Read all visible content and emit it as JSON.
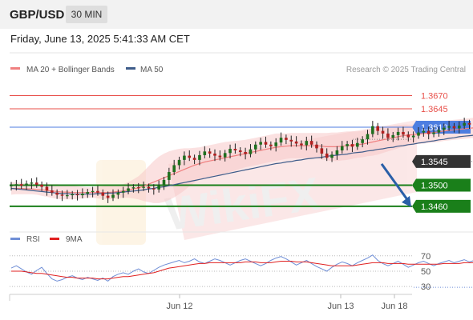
{
  "header": {
    "symbol": "GBP/USD",
    "timeframe": "30 MIN",
    "datetime": "Friday, June 13, 2025 5:41:33 AM CET"
  },
  "legend": {
    "ma20_label": "MA 20 + Bollinger Bands",
    "ma50_label": "MA 50",
    "copyright": "Research © 2025 Trading Central",
    "rsi_label": "RSI",
    "rsi_ma_label": "9MA"
  },
  "colors": {
    "ma20": "#f08080",
    "ma50": "#3e5c8a",
    "resistance": "#e8504a",
    "pivot": "#4d7ee0",
    "support": "#1a7f1a",
    "price_tag": "#333333",
    "arrow": "#2a5fa8",
    "rsi": "#6f8ed6",
    "rsi_ma": "#e02020",
    "candle_up": "#1f6f1f",
    "candle_down": "#b02020"
  },
  "chart_data": {
    "type": "candlestick",
    "y_unit": "GBP/USD price",
    "ylim": [
      1.3434,
      1.3695
    ],
    "x_tick_labels": [
      "Jun 12",
      "Jun 13",
      "Jun 18"
    ],
    "levels": [
      {
        "label": "1.3670",
        "value": 1.367,
        "kind": "resistance"
      },
      {
        "label": "1.3645",
        "value": 1.3645,
        "kind": "resistance"
      },
      {
        "label": "1.3610",
        "value": 1.361,
        "kind": "pivot"
      },
      {
        "label": "1.3545",
        "value": 1.3545,
        "kind": "last_price"
      },
      {
        "label": "1.3500",
        "value": 1.35,
        "kind": "support"
      },
      {
        "label": "1.3460",
        "value": 1.346,
        "kind": "support"
      }
    ],
    "closes": [
      1.35,
      1.3502,
      1.3499,
      1.3503,
      1.3505,
      1.3501,
      1.3497,
      1.349,
      1.3486,
      1.3482,
      1.348,
      1.3481,
      1.3483,
      1.3481,
      1.3484,
      1.3487,
      1.3489,
      1.3486,
      1.348,
      1.3476,
      1.3482,
      1.3486,
      1.3489,
      1.3494,
      1.3496,
      1.3495,
      1.3497,
      1.3494,
      1.3492,
      1.3499,
      1.351,
      1.3525,
      1.3538,
      1.3548,
      1.3556,
      1.3552,
      1.3548,
      1.3557,
      1.3564,
      1.356,
      1.3556,
      1.3553,
      1.3561,
      1.3569,
      1.3566,
      1.3563,
      1.3559,
      1.3568,
      1.3577,
      1.3582,
      1.3577,
      1.3574,
      1.3581,
      1.359,
      1.3586,
      1.3583,
      1.3579,
      1.3576,
      1.3584,
      1.3577,
      1.357,
      1.356,
      1.3552,
      1.3558,
      1.3566,
      1.3574,
      1.3578,
      1.3573,
      1.358,
      1.3587,
      1.3597,
      1.3612,
      1.3603,
      1.3598,
      1.359,
      1.3595,
      1.3601,
      1.3596,
      1.3591,
      1.3594,
      1.36,
      1.3603,
      1.3597,
      1.36,
      1.3605,
      1.3609,
      1.3612,
      1.3608,
      1.3613,
      1.3618,
      1.3615,
      1.362,
      1.3625,
      1.3622,
      1.3628,
      1.3592,
      1.3567,
      1.3563,
      1.3558,
      1.3549,
      1.3544
    ],
    "ma20": [
      1.3494,
      1.3494,
      1.3494,
      1.3493,
      1.3493,
      1.3492,
      1.3491,
      1.349,
      1.3489,
      1.3488,
      1.3487,
      1.3487,
      1.3486,
      1.3486,
      1.3486,
      1.3486,
      1.3486,
      1.3486,
      1.3486,
      1.3486,
      1.3487,
      1.3488,
      1.3489,
      1.3491,
      1.3493,
      1.3495,
      1.3498,
      1.3502,
      1.3506,
      1.351,
      1.3514,
      1.3518,
      1.3522,
      1.3526,
      1.353,
      1.3534,
      1.3538,
      1.3541,
      1.3544,
      1.3546,
      1.3548,
      1.355,
      1.3552,
      1.3554,
      1.3556,
      1.3558,
      1.356,
      1.3562,
      1.3564,
      1.3566,
      1.3568,
      1.357,
      1.3572,
      1.3573,
      1.3574,
      1.3575,
      1.3575,
      1.3575,
      1.3575,
      1.3575,
      1.3575,
      1.3574,
      1.3573,
      1.3573,
      1.3573,
      1.3574,
      1.3575,
      1.3576,
      1.3577,
      1.3578,
      1.358,
      1.3582,
      1.3584,
      1.3586,
      1.3588,
      1.359,
      1.3592,
      1.3594,
      1.3595,
      1.3596,
      1.3597,
      1.3598,
      1.3599,
      1.36,
      1.3601,
      1.3603,
      1.3604,
      1.3605,
      1.3606,
      1.3607,
      1.3608,
      1.3609,
      1.361,
      1.3611,
      1.3611,
      1.3608,
      1.3604,
      1.36,
      1.3596,
      1.3592,
      1.3588
    ],
    "ma50": [
      1.3494,
      1.3493,
      1.3492,
      1.3491,
      1.349,
      1.3489,
      1.3488,
      1.3487,
      1.3486,
      1.3485,
      1.3484,
      1.3484,
      1.3483,
      1.3483,
      1.3483,
      1.3483,
      1.3483,
      1.3484,
      1.3484,
      1.3485,
      1.3485,
      1.3486,
      1.3487,
      1.3488,
      1.3489,
      1.349,
      1.3491,
      1.3493,
      1.3494,
      1.3496,
      1.3497,
      1.3499,
      1.3501,
      1.3503,
      1.3505,
      1.3507,
      1.3509,
      1.3511,
      1.3513,
      1.3515,
      1.3517,
      1.3519,
      1.3521,
      1.3523,
      1.3525,
      1.3527,
      1.3529,
      1.3531,
      1.3533,
      1.3535,
      1.3537,
      1.3539,
      1.3541,
      1.3542,
      1.3544,
      1.3545,
      1.3547,
      1.3548,
      1.355,
      1.3551,
      1.3552,
      1.3553,
      1.3555,
      1.3556,
      1.3557,
      1.3558,
      1.3559,
      1.3561,
      1.3562,
      1.3563,
      1.3565,
      1.3566,
      1.3568,
      1.3569,
      1.3571,
      1.3572,
      1.3574,
      1.3575,
      1.3577,
      1.3578,
      1.358,
      1.3581,
      1.3583,
      1.3584,
      1.3586,
      1.3587,
      1.3589,
      1.359,
      1.3592,
      1.3593,
      1.3594,
      1.3595,
      1.3596,
      1.3597,
      1.3598,
      1.3597,
      1.3596,
      1.3595,
      1.3594,
      1.3593,
      1.3592
    ],
    "band_half_width": [
      0.0012,
      0.0011,
      0.0011,
      0.001,
      0.001,
      0.001,
      0.0011,
      0.0012,
      0.0013,
      0.0014,
      0.0014,
      0.0014,
      0.0013,
      0.0012,
      0.0011,
      0.001,
      0.001,
      0.0011,
      0.0012,
      0.0013,
      0.0013,
      0.0013,
      0.0013,
      0.0015,
      0.0018,
      0.0022,
      0.0028,
      0.0034,
      0.004,
      0.0044,
      0.0046,
      0.0046,
      0.0045,
      0.0043,
      0.004,
      0.0036,
      0.0033,
      0.0031,
      0.003,
      0.003,
      0.003,
      0.003,
      0.003,
      0.0029,
      0.0028,
      0.0027,
      0.0026,
      0.0026,
      0.0026,
      0.0026,
      0.0026,
      0.0026,
      0.0026,
      0.0025,
      0.0024,
      0.0024,
      0.0024,
      0.0024,
      0.0024,
      0.0024,
      0.0024,
      0.0025,
      0.0026,
      0.0027,
      0.0027,
      0.0027,
      0.0027,
      0.0026,
      0.0025,
      0.0025,
      0.0025,
      0.0026,
      0.0026,
      0.0025,
      0.0024,
      0.0023,
      0.0022,
      0.0021,
      0.002,
      0.0019,
      0.0019,
      0.0019,
      0.0019,
      0.0019,
      0.0019,
      0.0019,
      0.0019,
      0.0019,
      0.0019,
      0.0019,
      0.0019,
      0.0019,
      0.002,
      0.0021,
      0.0022,
      0.0026,
      0.0032,
      0.0036,
      0.004,
      0.0044,
      0.0046
    ],
    "forecast_arrow": {
      "from": 1.3545,
      "to": 1.346
    },
    "rsi_panel": {
      "ylim": [
        26,
        76
      ],
      "y_ticks": [
        30,
        50,
        70
      ],
      "rsi": [
        54,
        57,
        53,
        49,
        46,
        51,
        55,
        47,
        40,
        37,
        39,
        42,
        44,
        41,
        39,
        42,
        40,
        38,
        41,
        37,
        43,
        46,
        48,
        46,
        50,
        53,
        49,
        47,
        51,
        55,
        58,
        60,
        62,
        64,
        61,
        63,
        66,
        62,
        60,
        63,
        66,
        64,
        61,
        58,
        61,
        64,
        66,
        63,
        60,
        57,
        60,
        64,
        67,
        69,
        66,
        62,
        58,
        61,
        64,
        60,
        56,
        53,
        50,
        55,
        59,
        62,
        60,
        57,
        61,
        64,
        67,
        71,
        64,
        60,
        57,
        60,
        63,
        59,
        55,
        58,
        61,
        63,
        60,
        57,
        60,
        62,
        64,
        61,
        63,
        65,
        62,
        64,
        66,
        63,
        70,
        48,
        38,
        35,
        33,
        31,
        29
      ],
      "rsi_ma": [
        50,
        50,
        50,
        49,
        48,
        47,
        47,
        46,
        45,
        44,
        43,
        42,
        42,
        41,
        41,
        41,
        41,
        40,
        40,
        40,
        41,
        42,
        43,
        43,
        44,
        45,
        46,
        47,
        48,
        50,
        52,
        54,
        55,
        56,
        57,
        58,
        59,
        60,
        60,
        61,
        61,
        61,
        61,
        61,
        61,
        61,
        62,
        62,
        62,
        61,
        61,
        61,
        62,
        63,
        63,
        63,
        62,
        62,
        62,
        61,
        60,
        59,
        58,
        57,
        57,
        57,
        57,
        57,
        58,
        59,
        60,
        61,
        61,
        61,
        60,
        60,
        60,
        60,
        59,
        59,
        59,
        59,
        59,
        59,
        59,
        60,
        60,
        60,
        60,
        61,
        61,
        61,
        62,
        62,
        63,
        61,
        56,
        51,
        46,
        40,
        33
      ]
    }
  }
}
